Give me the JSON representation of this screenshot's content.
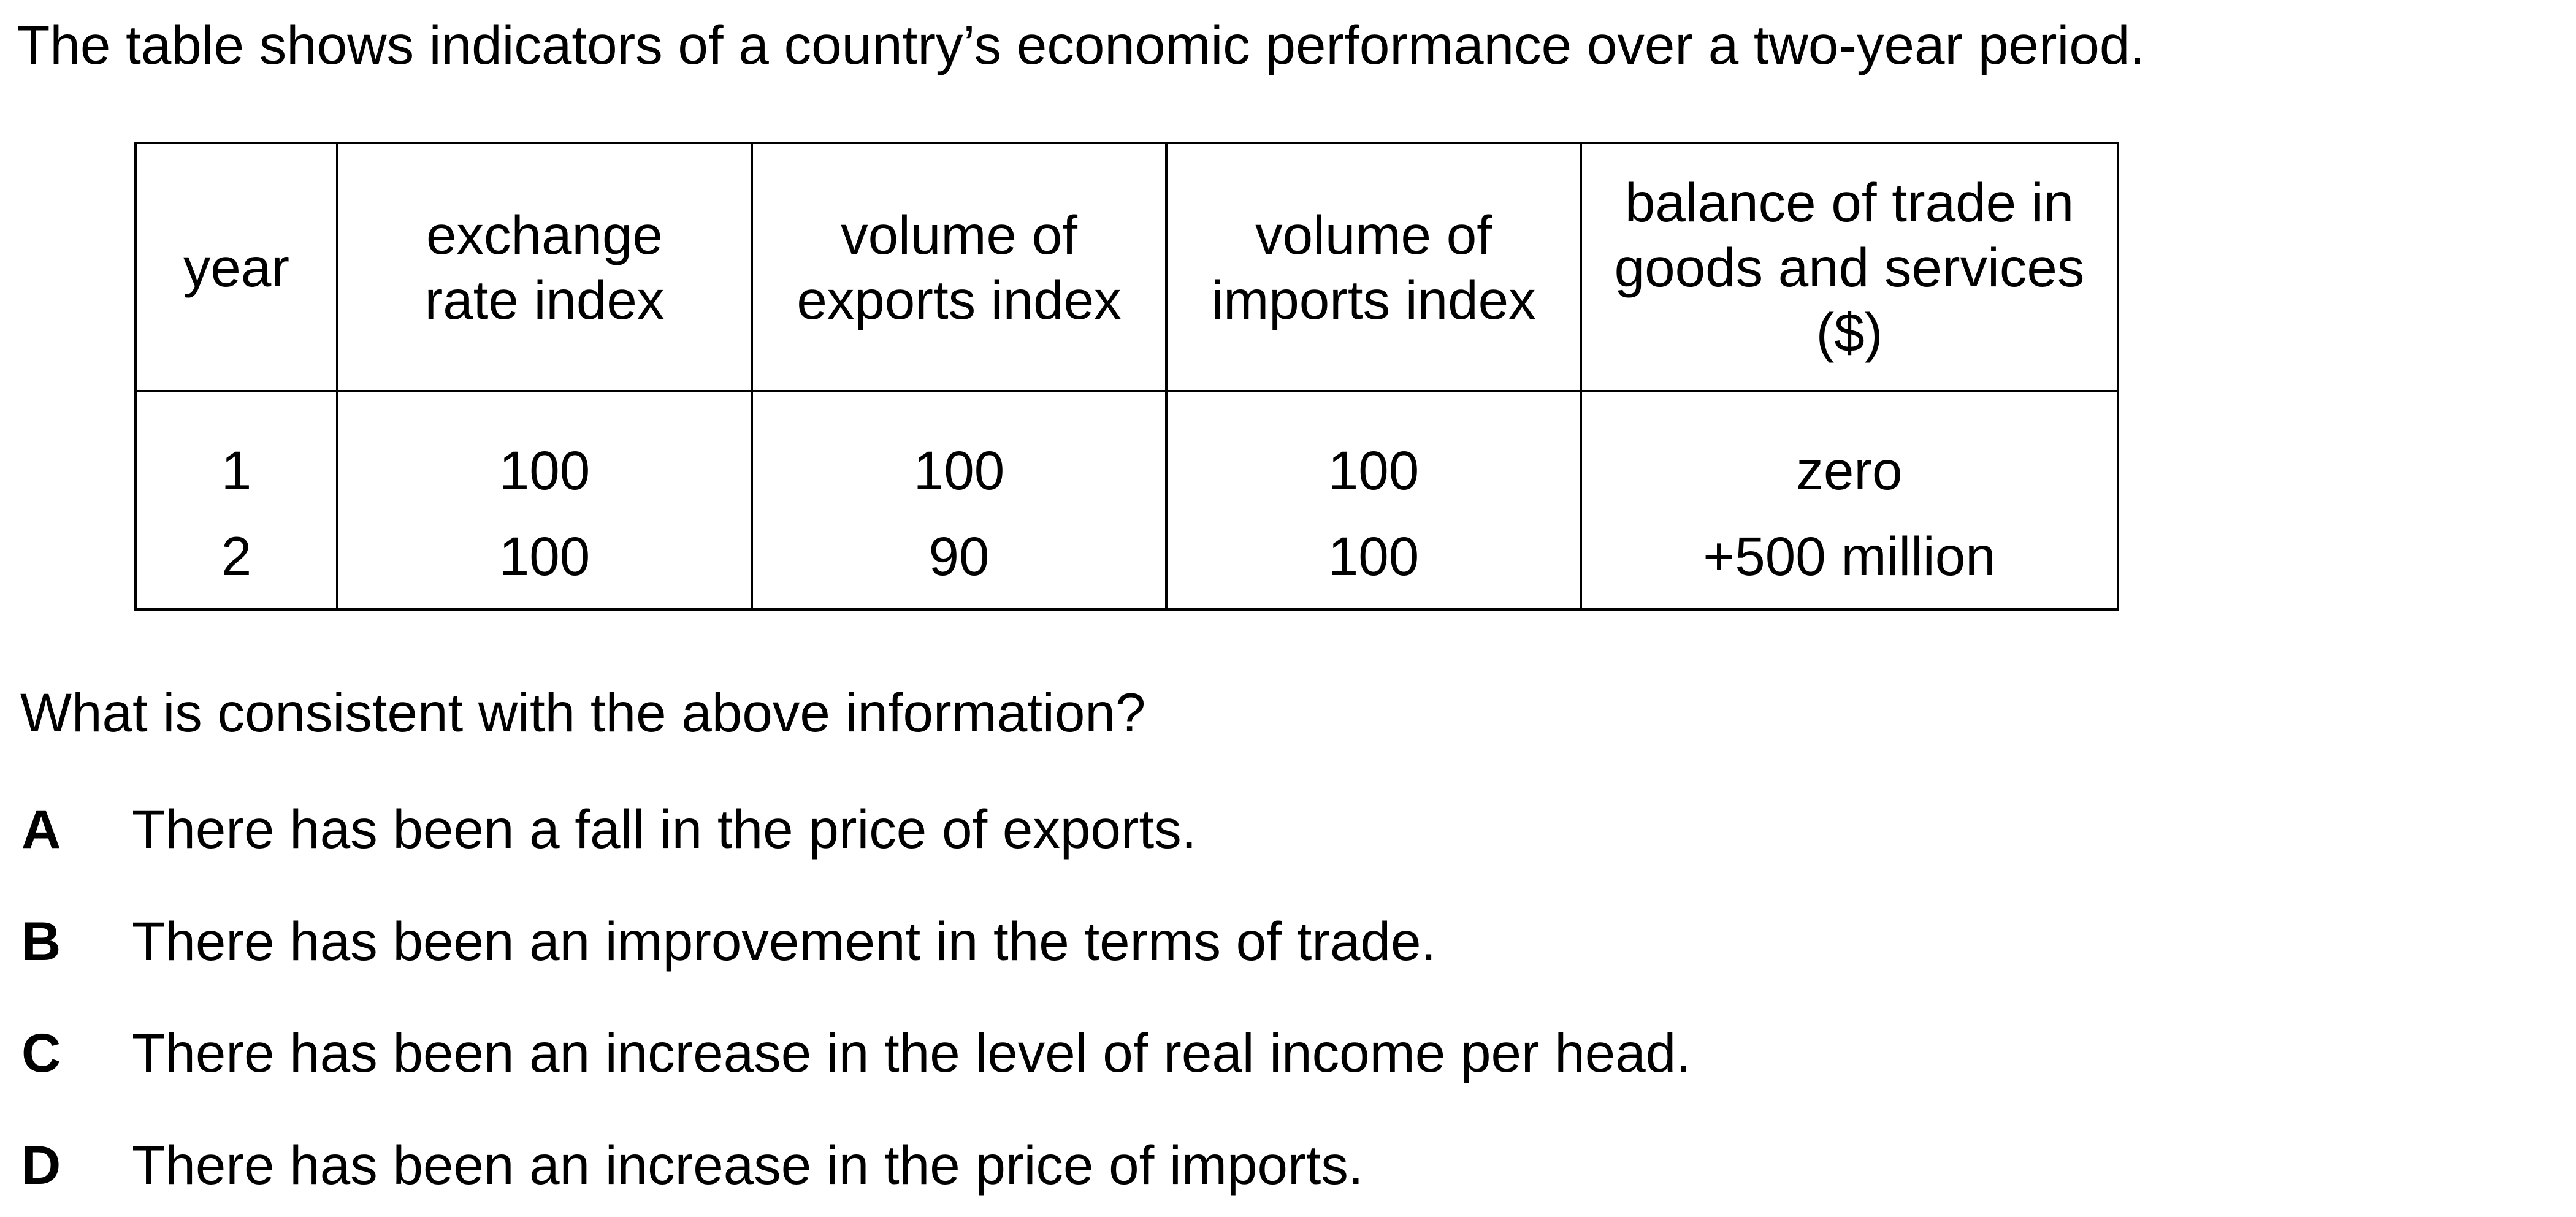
{
  "intro": "The table shows indicators of a country’s economic performance over a two-year period.",
  "table": {
    "headers": [
      "year",
      "exchange\nrate index",
      "volume of\nexports index",
      "volume of\nimports index",
      "balance of trade in\ngoods and services\n($)"
    ],
    "rows": [
      [
        "1",
        "100",
        "100",
        "100",
        "zero"
      ],
      [
        "2",
        "100",
        "90",
        "100",
        "+500 million"
      ]
    ]
  },
  "question": "What is consistent with the above information?",
  "options": [
    {
      "letter": "A",
      "text": "There has been a fall in the price of exports."
    },
    {
      "letter": "B",
      "text": "There has been an improvement in the terms of trade."
    },
    {
      "letter": "C",
      "text": "There has been an increase in the level of real income per head."
    },
    {
      "letter": "D",
      "text": "There has been an increase in the price of imports."
    }
  ]
}
